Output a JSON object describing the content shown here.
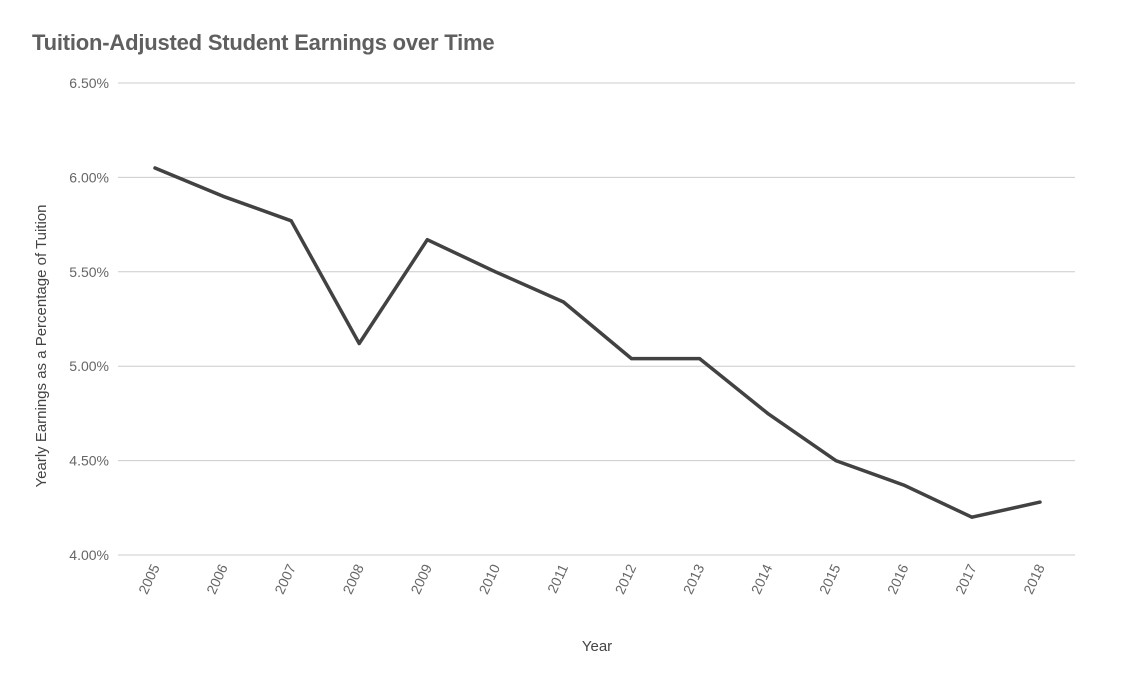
{
  "chart_data": {
    "type": "line",
    "title": "Tuition-Adjusted Student Earnings over Time",
    "xlabel": "Year",
    "ylabel": "Yearly Earnings as a Percentage of Tuition",
    "ylim": [
      4.0,
      6.5
    ],
    "y_ticks": [
      "4.00%",
      "4.50%",
      "5.00%",
      "5.50%",
      "6.00%",
      "6.50%"
    ],
    "y_tick_values": [
      4.0,
      4.5,
      5.0,
      5.5,
      6.0,
      6.5
    ],
    "grid": true,
    "legend": "none",
    "categories": [
      "2005",
      "2006",
      "2007",
      "2008",
      "2009",
      "2010",
      "2011",
      "2012",
      "2013",
      "2014",
      "2015",
      "2016",
      "2017",
      "2018"
    ],
    "series": [
      {
        "values": [
          6.05,
          5.9,
          5.77,
          5.12,
          5.67,
          5.5,
          5.34,
          5.04,
          5.04,
          4.75,
          4.5,
          4.37,
          4.2,
          4.28
        ],
        "color": "#424242"
      }
    ]
  }
}
